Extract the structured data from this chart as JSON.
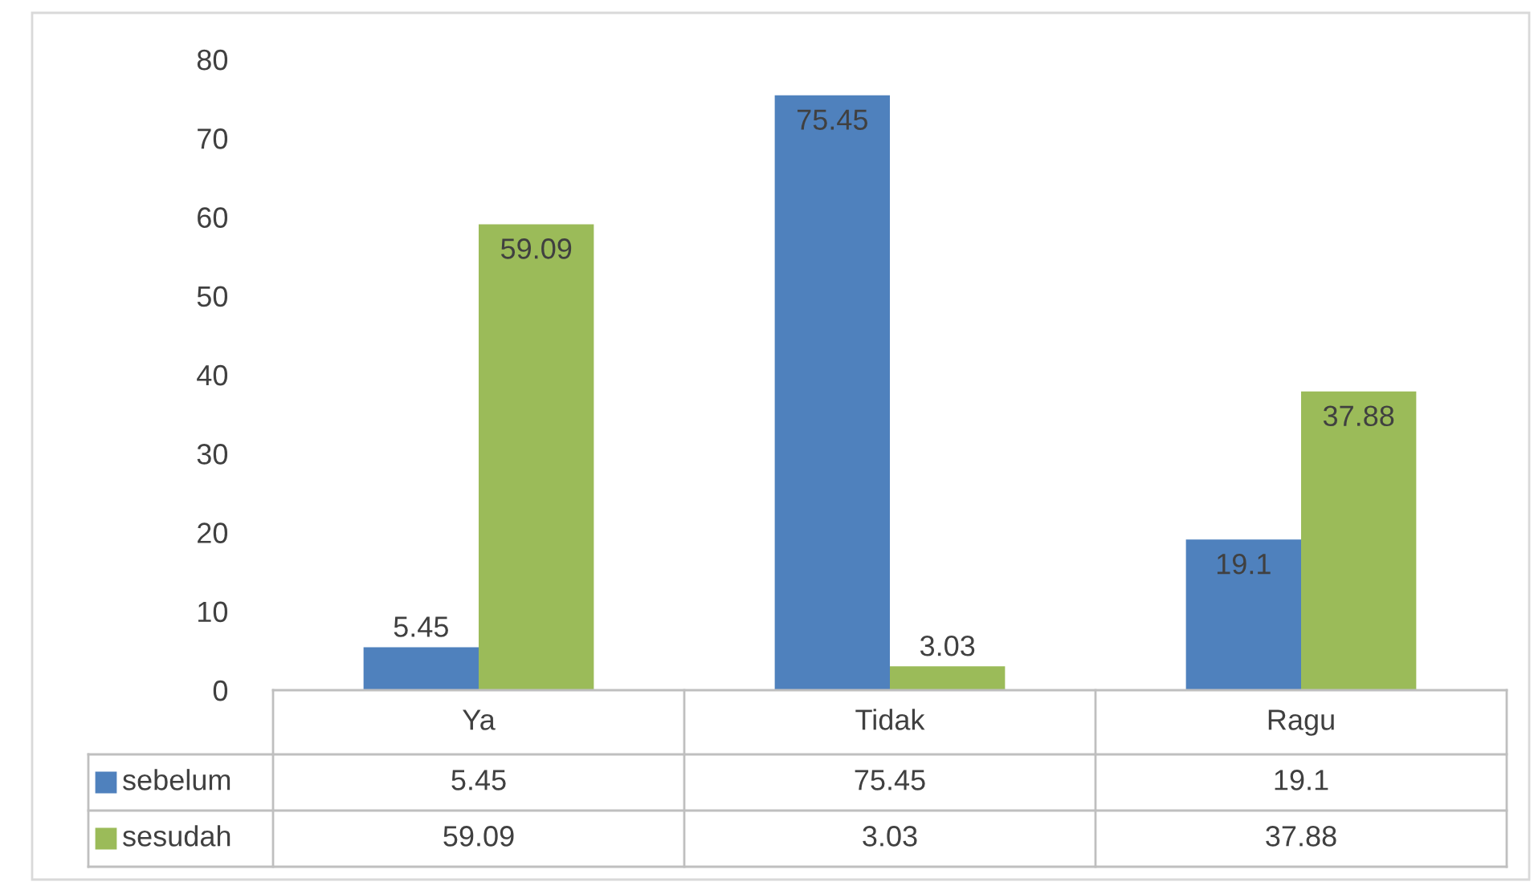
{
  "chart_data": {
    "type": "bar",
    "categories": [
      "Ya",
      "Tidak",
      "Ragu"
    ],
    "series": [
      {
        "name": "sebelum",
        "color": "#4f81bd",
        "values": [
          5.45,
          75.45,
          19.1
        ],
        "value_labels": [
          "5.45",
          "75.45",
          "19.1"
        ]
      },
      {
        "name": "sesudah",
        "color": "#9bbb59",
        "values": [
          59.09,
          3.03,
          37.88
        ],
        "value_labels": [
          "59.09",
          "3.03",
          "37.88"
        ]
      }
    ],
    "annotations": [
      "5.45",
      "75.45",
      "19.1",
      "59.09",
      "3.03",
      "37.88"
    ],
    "ylim": [
      0,
      80
    ],
    "yticks": [
      0,
      10,
      20,
      30,
      40,
      50,
      60,
      70,
      80
    ],
    "data_labels": true,
    "legend": "bottom"
  }
}
